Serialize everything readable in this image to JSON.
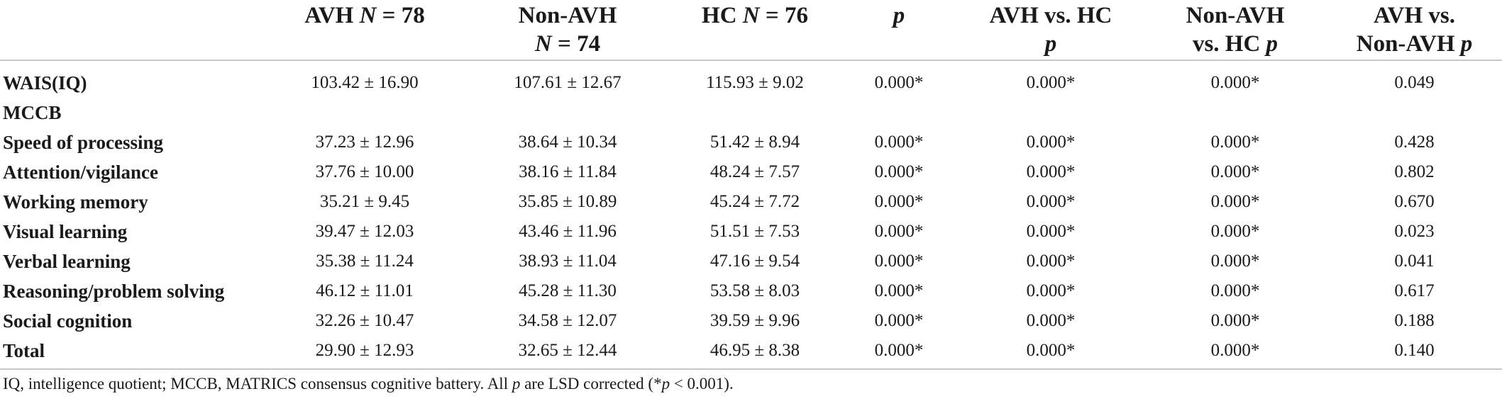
{
  "table": {
    "headers": [
      {
        "parts": [
          {
            "t": "",
            "i": false
          }
        ]
      },
      {
        "parts": [
          {
            "t": "AVH ",
            "i": false
          },
          {
            "t": "N",
            "i": true
          },
          {
            "t": " = 78",
            "i": false
          }
        ]
      },
      {
        "parts": [
          {
            "t": "Non-AVH",
            "i": false
          },
          {
            "t": "\n",
            "i": false
          },
          {
            "t": "N",
            "i": true
          },
          {
            "t": " = 74",
            "i": false
          }
        ]
      },
      {
        "parts": [
          {
            "t": "HC ",
            "i": false
          },
          {
            "t": "N",
            "i": true
          },
          {
            "t": " = 76",
            "i": false
          }
        ]
      },
      {
        "parts": [
          {
            "t": "p",
            "i": true
          }
        ]
      },
      {
        "parts": [
          {
            "t": "AVH vs. HC",
            "i": false
          },
          {
            "t": "\n",
            "i": false
          },
          {
            "t": "p",
            "i": true
          }
        ]
      },
      {
        "parts": [
          {
            "t": "Non-AVH",
            "i": false
          },
          {
            "t": "\n",
            "i": false
          },
          {
            "t": "vs. HC ",
            "i": false
          },
          {
            "t": "p",
            "i": true
          }
        ]
      },
      {
        "parts": [
          {
            "t": "AVH vs.",
            "i": false
          },
          {
            "t": "\n",
            "i": false
          },
          {
            "t": "Non-AVH ",
            "i": false
          },
          {
            "t": "p",
            "i": true
          }
        ]
      }
    ],
    "rows": [
      {
        "label": "WAIS(IQ)",
        "cells": [
          "103.42 ± 16.90",
          "107.61 ± 12.67",
          "115.93 ± 9.02",
          "0.000*",
          "0.000*",
          "0.000*",
          "0.049"
        ]
      },
      {
        "label": "MCCB",
        "cells": [
          "",
          "",
          "",
          "",
          "",
          "",
          ""
        ]
      },
      {
        "label": "Speed of processing",
        "cells": [
          "37.23 ± 12.96",
          "38.64 ± 10.34",
          "51.42 ± 8.94",
          "0.000*",
          "0.000*",
          "0.000*",
          "0.428"
        ]
      },
      {
        "label": "Attention/vigilance",
        "cells": [
          "37.76 ± 10.00",
          "38.16 ± 11.84",
          "48.24 ± 7.57",
          "0.000*",
          "0.000*",
          "0.000*",
          "0.802"
        ]
      },
      {
        "label": "Working memory",
        "cells": [
          "35.21 ± 9.45",
          "35.85 ± 10.89",
          "45.24 ± 7.72",
          "0.000*",
          "0.000*",
          "0.000*",
          "0.670"
        ]
      },
      {
        "label": "Visual learning",
        "cells": [
          "39.47 ± 12.03",
          "43.46 ± 11.96",
          "51.51 ± 7.53",
          "0.000*",
          "0.000*",
          "0.000*",
          "0.023"
        ]
      },
      {
        "label": "Verbal learning",
        "cells": [
          "35.38 ± 11.24",
          "38.93 ± 11.04",
          "47.16 ± 9.54",
          "0.000*",
          "0.000*",
          "0.000*",
          "0.041"
        ]
      },
      {
        "label": "Reasoning/problem solving",
        "cells": [
          "46.12 ± 11.01",
          "45.28 ± 11.30",
          "53.58 ± 8.03",
          "0.000*",
          "0.000*",
          "0.000*",
          "0.617"
        ]
      },
      {
        "label": "Social cognition",
        "cells": [
          "32.26 ± 10.47",
          "34.58 ± 12.07",
          "39.59 ± 9.96",
          "0.000*",
          "0.000*",
          "0.000*",
          "0.188"
        ]
      },
      {
        "label": "Total",
        "cells": [
          "29.90 ± 12.93",
          "32.65 ± 12.44",
          "46.95 ± 8.38",
          "0.000*",
          "0.000*",
          "0.000*",
          "0.140"
        ]
      }
    ]
  },
  "footnote": {
    "parts": [
      {
        "t": "IQ, intelligence quotient; MCCB, MATRICS consensus cognitive battery. All ",
        "i": false
      },
      {
        "t": "p",
        "i": true
      },
      {
        "t": " are LSD corrected (*",
        "i": false
      },
      {
        "t": "p",
        "i": true
      },
      {
        "t": " < 0.001).",
        "i": false
      }
    ]
  }
}
